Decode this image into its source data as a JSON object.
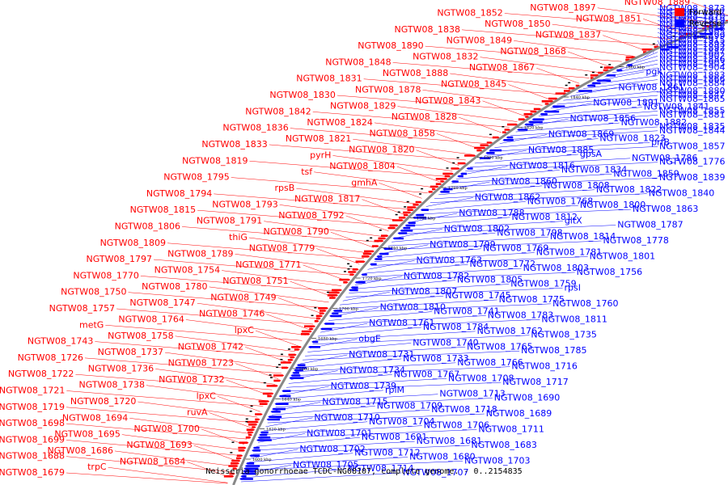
{
  "caption": "Neisseria gonorrhoeae TCDC-NG08107, complete genome. - 0..2154835",
  "legend": [
    {
      "label": "Forward",
      "color": "#ff0000"
    },
    {
      "label": "Reverse",
      "color": "#0000ff"
    }
  ],
  "colors": {
    "forward": "#ff0000",
    "reverse": "#0000ff",
    "backbone": "#888888"
  },
  "ticks": [
    "1600 kbp",
    "1620 kbp",
    "1640 kbp",
    "1660 kbp",
    "1680 kbp",
    "1700 kbp",
    "1720 kbp",
    "1740 kbp",
    "1760 kbp",
    "1780 kbp",
    "1800 kbp",
    "1820 kbp",
    "1840 kbp",
    "1860 kbp",
    "1880 kbp",
    "1900 kbp"
  ],
  "forward_labels": [
    "NGTW08_1889",
    "NGTW08_1897",
    "NGTW08_1852",
    "NGTW08_1851",
    "NGTW08_1850",
    "NGTW08_1838",
    "NGTW08_1837",
    "NGTW08_1849",
    "NGTW08_1890",
    "NGTW08_1868",
    "NGTW08_1832",
    "NGTW08_1848",
    "NGTW08_1867",
    "NGTW08_1888",
    "NGTW08_1831",
    "NGTW08_1845",
    "NGTW08_1878",
    "NGTW08_1830",
    "NGTW08_1843",
    "NGTW08_1829",
    "NGTW08_1842",
    "NGTW08_1828",
    "NGTW08_1824",
    "NGTW08_1836",
    "NGTW08_1858",
    "NGTW08_1821",
    "NGTW08_1833",
    "NGTW08_1820",
    "pyrH",
    "NGTW08_1819",
    "NGTW08_1804",
    "tsf",
    "NGTW08_1795",
    "gmhA",
    "rpsB",
    "NGTW08_1794",
    "NGTW08_1817",
    "NGTW08_1793",
    "NGTW08_1815",
    "NGTW08_1792",
    "NGTW08_1791",
    "NGTW08_1806",
    "NGTW08_1790",
    "thiG",
    "NGTW08_1809",
    "NGTW08_1779",
    "NGTW08_1789",
    "NGTW08_1797",
    "NGTW08_1771",
    "NGTW08_1754",
    "NGTW08_1770",
    "NGTW08_1751",
    "NGTW08_1780",
    "NGTW08_1750",
    "NGTW08_1749",
    "NGTW08_1747",
    "NGTW08_1757",
    "NGTW08_1746",
    "NGTW08_1764",
    "metG",
    "lpxC",
    "NGTW08_1758",
    "NGTW08_1743",
    "NGTW08_1742",
    "NGTW08_1737",
    "NGTW08_1726",
    "NGTW08_1723",
    "NGTW08_1736",
    "NGTW08_1722",
    "NGTW08_1732",
    "NGTW08_1738",
    "NGTW08_1721",
    "lpxC",
    "NGTW08_1720",
    "NGTW08_1719",
    "ruvA",
    "NGTW08_1694",
    "NGTW08_1698",
    "NGTW08_1700",
    "NGTW08_1695",
    "NGTW08_1699",
    "NGTW08_1693",
    "NGTW08_1686",
    "NGTW08_1688",
    "NGTW08_1684",
    "trpC",
    "NGTW08_1679"
  ],
  "reverse_labels": [
    "NGTW08_1873",
    "NGTW08_1872",
    "NGTW08_1870",
    "NGTW08_1919",
    "NGTW08_1918",
    "NGTW08_1916",
    "NGTW08_1905",
    "NGTW08_1899",
    "NGTW08_1915",
    "NGTW08_1893",
    "NGTW08_1892",
    "NGTW08_1887",
    "NGTW08_1902",
    "NGTW08_1886",
    "NGTW08_1903",
    "NGTW08_1904",
    "pgk",
    "NGTW08_1883",
    "NGTW08_1866",
    "NGTW08_1884",
    "NGTW08_1861",
    "NGTW08_1880",
    "NGTW08_1847",
    "NGTW08_1865",
    "NGTW08_1891",
    "NGTW08_1841",
    "NGTW08_1855",
    "NGTW08_1881",
    "NGTW08_1856",
    "NGTW08_1882",
    "NGTW08_1835",
    "NGTW08_1844",
    "NGTW08_1869",
    "NGTW08_1823",
    "prfB",
    "NGTW08_1857",
    "NGTW08_1885",
    "gpsA",
    "NGTW08_1786",
    "NGTW08_1776",
    "NGTW08_1816",
    "NGTW08_1834",
    "NGTW08_1859",
    "NGTW08_1839",
    "NGTW08_1860",
    "NGTW08_1808",
    "NGTW08_1822",
    "NGTW08_1840",
    "NGTW08_1862",
    "NGTW08_1768",
    "NGTW08_1800",
    "NGTW08_1863",
    "NGTW08_1788",
    "NGTW08_1812",
    "gltX",
    "NGTW08_1787",
    "NGTW08_1802",
    "NGTW08_1798",
    "NGTW08_1814",
    "NGTW08_1778",
    "NGTW08_1799",
    "NGTW08_1769",
    "NGTW08_1781",
    "NGTW08_1801",
    "NGTW08_1763",
    "NGTW08_1772",
    "NGTW08_1803",
    "NGTW08_1756",
    "NGTW08_1782",
    "NGTW08_1805",
    "NGTW08_1759",
    "rpsI",
    "NGTW08_1807",
    "NGTW08_1745",
    "NGTW08_1775",
    "NGTW08_1760",
    "NGTW08_1810",
    "NGTW08_1741",
    "NGTW08_1783",
    "NGTW08_1811",
    "NGTW08_1761",
    "NGTW08_1784",
    "NGTW08_1762",
    "NGTW08_1735",
    "obgE",
    "NGTW08_1740",
    "NGTW08_1765",
    "NGTW08_1785",
    "NGTW08_1731",
    "NGTW08_1733",
    "NGTW08_1766",
    "NGTW08_1716",
    "NGTW08_1734",
    "NGTW08_1767",
    "NGTW08_1708",
    "NGTW08_1717",
    "NGTW08_1739",
    "rplM",
    "NGTW08_1713",
    "NGTW08_1690",
    "NGTW08_1715",
    "NGTW08_1709",
    "NGTW08_1718",
    "NGTW08_1689",
    "NGTW08_1710",
    "NGTW08_1704",
    "NGTW08_1706",
    "NGTW08_1711",
    "NGTW08_1701",
    "NGTW08_1691",
    "NGTW08_1681",
    "NGTW08_1683",
    "NGTW08_1702",
    "NGTW08_1712",
    "NGTW08_1680",
    "NGTW08_1703",
    "NGTW08_1705",
    "NGTW08_1714",
    "NGTW08_1707"
  ]
}
